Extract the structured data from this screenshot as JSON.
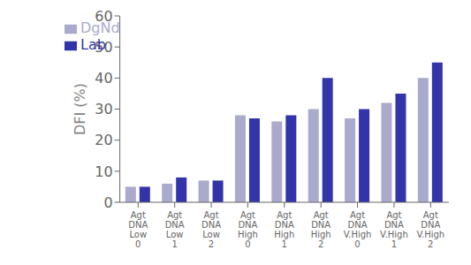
{
  "chart_data": {
    "type": "bar",
    "categories": [
      "Agt\nDNA\nLow\n0",
      "Agt\nDNA\nLow\n1",
      "Agt\nDNA\nLow\n2",
      "Agt\nDNA\nHigh\n0",
      "Agt\nDNA\nHigh\n1",
      "Agt\nDNA\nHigh\n2",
      "Agt\nDNA\nV.High\n0",
      "Agt\nDNA\nV.High\n1",
      "Agt\nDNA\nV.High\n2"
    ],
    "series": [
      {
        "name": "DgNd",
        "color": "#aaaacc",
        "values": [
          5,
          6,
          7,
          28,
          26,
          30,
          27,
          32,
          40
        ]
      },
      {
        "name": "Lab",
        "color": "#3333aa",
        "values": [
          5,
          8,
          7,
          27,
          28,
          40,
          30,
          35,
          45
        ]
      }
    ],
    "y_label": "DFI (%)",
    "ylim": [
      0,
      60
    ],
    "yticks": [
      0,
      10,
      20,
      30,
      40,
      50,
      60
    ],
    "grid": false,
    "legend": "upper left"
  }
}
